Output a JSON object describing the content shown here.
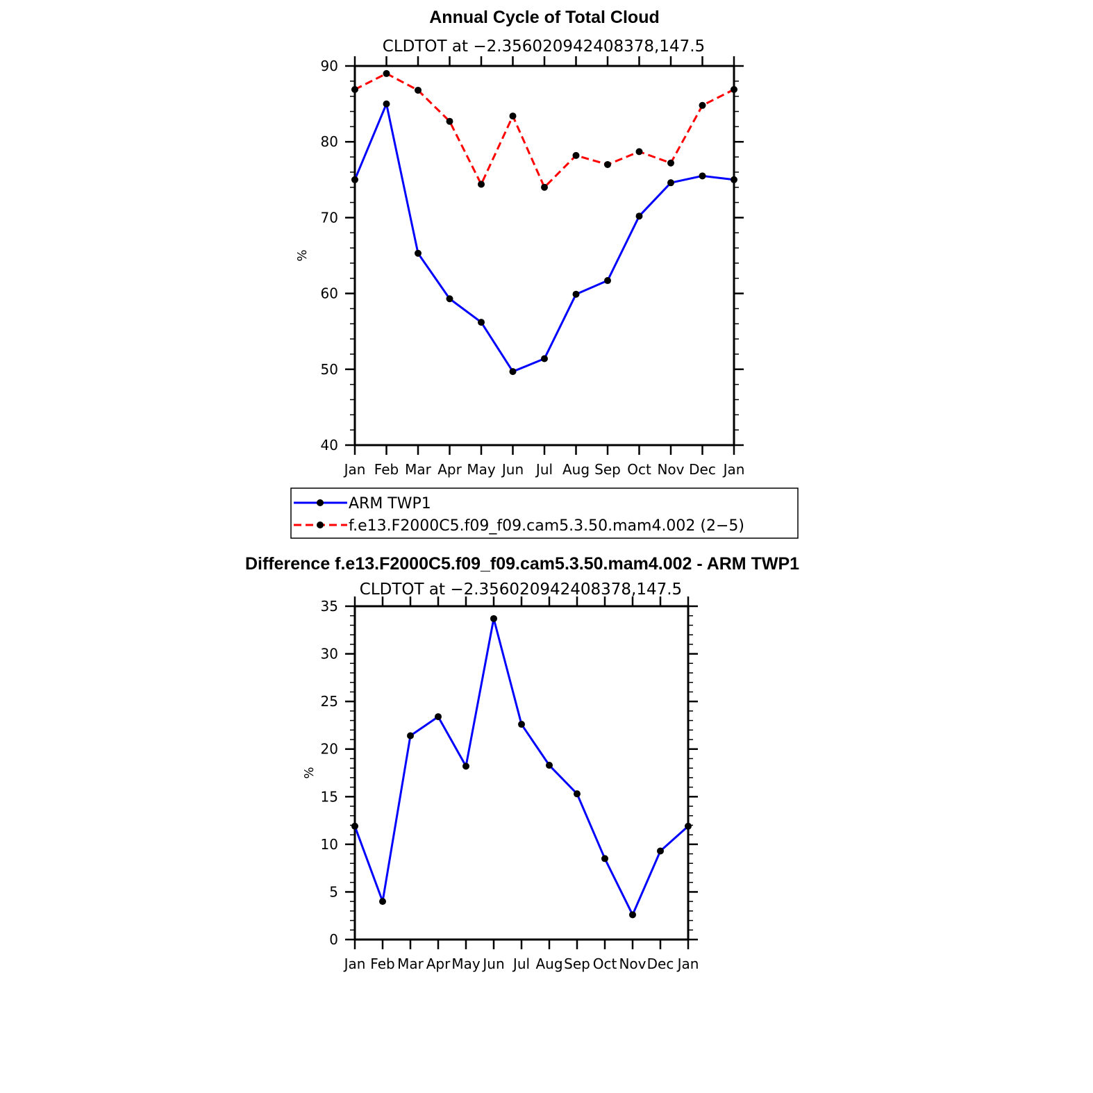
{
  "chart_data": [
    {
      "type": "line",
      "title": "Annual Cycle of Total Cloud",
      "subtitle": "CLDTOT at −2.356020942408378,147.5",
      "ylabel": "%",
      "categories": [
        "Jan",
        "Feb",
        "Mar",
        "Apr",
        "May",
        "Jun",
        "Jul",
        "Aug",
        "Sep",
        "Oct",
        "Nov",
        "Dec",
        "Jan"
      ],
      "ylim": [
        40,
        90
      ],
      "yticks": [
        "40",
        "50",
        "60",
        "70",
        "80",
        "90"
      ],
      "series": [
        {
          "name": "ARM TWP1",
          "color": "#0000ff",
          "dashed": false,
          "values": [
            75.0,
            85.0,
            65.3,
            59.3,
            56.2,
            49.7,
            51.4,
            59.9,
            61.7,
            70.2,
            74.6,
            75.5,
            75.0
          ]
        },
        {
          "name": "f.e13.F2000C5.f09_f09.cam5.3.50.mam4.002 (2−5)",
          "color": "#ff0000",
          "dashed": true,
          "values": [
            86.9,
            89.0,
            86.8,
            82.7,
            74.4,
            83.4,
            74.0,
            78.2,
            77.0,
            78.7,
            77.2,
            84.8,
            86.9
          ]
        }
      ],
      "legend": [
        "ARM TWP1",
        "f.e13.F2000C5.f09_f09.cam5.3.50.mam4.002 (2−5)"
      ]
    },
    {
      "type": "line",
      "title": "Difference f.e13.F2000C5.f09_f09.cam5.3.50.mam4.002 - ARM TWP1",
      "subtitle": "CLDTOT at −2.356020942408378,147.5",
      "ylabel": "%",
      "categories": [
        "Jan",
        "Feb",
        "Mar",
        "Apr",
        "May",
        "Jun",
        "Jul",
        "Aug",
        "Sep",
        "Oct",
        "Nov",
        "Dec",
        "Jan"
      ],
      "ylim": [
        0,
        35
      ],
      "yticks": [
        "0",
        "5",
        "10",
        "15",
        "20",
        "25",
        "30",
        "35"
      ],
      "series": [
        {
          "name": "Difference",
          "color": "#0000ff",
          "dashed": false,
          "values": [
            11.9,
            4.0,
            21.4,
            23.4,
            18.2,
            33.7,
            22.6,
            18.3,
            15.3,
            8.5,
            2.6,
            9.3,
            11.9
          ]
        }
      ]
    }
  ]
}
